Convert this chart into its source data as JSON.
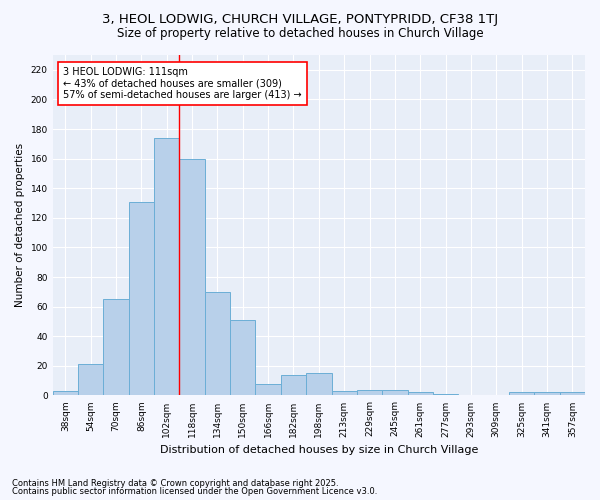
{
  "title": "3, HEOL LODWIG, CHURCH VILLAGE, PONTYPRIDD, CF38 1TJ",
  "subtitle": "Size of property relative to detached houses in Church Village",
  "xlabel": "Distribution of detached houses by size in Church Village",
  "ylabel": "Number of detached properties",
  "categories": [
    "38sqm",
    "54sqm",
    "70sqm",
    "86sqm",
    "102sqm",
    "118sqm",
    "134sqm",
    "150sqm",
    "166sqm",
    "182sqm",
    "198sqm",
    "213sqm",
    "229sqm",
    "245sqm",
    "261sqm",
    "277sqm",
    "293sqm",
    "309sqm",
    "325sqm",
    "341sqm",
    "357sqm"
  ],
  "values": [
    3,
    21,
    65,
    131,
    174,
    160,
    70,
    51,
    8,
    14,
    15,
    3,
    4,
    4,
    2,
    1,
    0,
    0,
    2,
    2,
    2
  ],
  "bar_color": "#b8d0ea",
  "bar_edge_color": "#6baed6",
  "fig_bg_color": "#f5f7ff",
  "ax_bg_color": "#e8eef8",
  "grid_color": "#ffffff",
  "annotation_text": "3 HEOL LODWIG: 111sqm\n← 43% of detached houses are smaller (309)\n57% of semi-detached houses are larger (413) →",
  "red_line_idx": 4.5,
  "ylim": [
    0,
    230
  ],
  "yticks": [
    0,
    20,
    40,
    60,
    80,
    100,
    120,
    140,
    160,
    180,
    200,
    220
  ],
  "footnote1": "Contains HM Land Registry data © Crown copyright and database right 2025.",
  "footnote2": "Contains public sector information licensed under the Open Government Licence v3.0.",
  "title_fontsize": 9.5,
  "subtitle_fontsize": 8.5,
  "ylabel_fontsize": 7.5,
  "xlabel_fontsize": 8,
  "tick_fontsize": 6.5,
  "annotation_fontsize": 7,
  "footnote_fontsize": 6
}
